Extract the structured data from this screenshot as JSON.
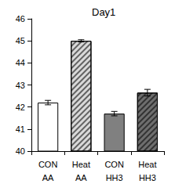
{
  "chart_data": {
    "type": "bar",
    "title": "Day1",
    "categories": [
      "CON\nAA",
      "Heat\nAA",
      "CON\nHH3",
      "Heat\nHH3"
    ],
    "values": [
      42.2,
      45.0,
      41.7,
      42.65
    ],
    "errors": [
      0.1,
      0.05,
      0.1,
      0.15
    ],
    "colors": [
      "#ffffff",
      "#d9d9d9",
      "#808080",
      "#6e6e6e"
    ],
    "ylim": [
      40,
      46
    ],
    "yticks": [
      40,
      41,
      42,
      43,
      44,
      45,
      46
    ],
    "grid": false
  }
}
